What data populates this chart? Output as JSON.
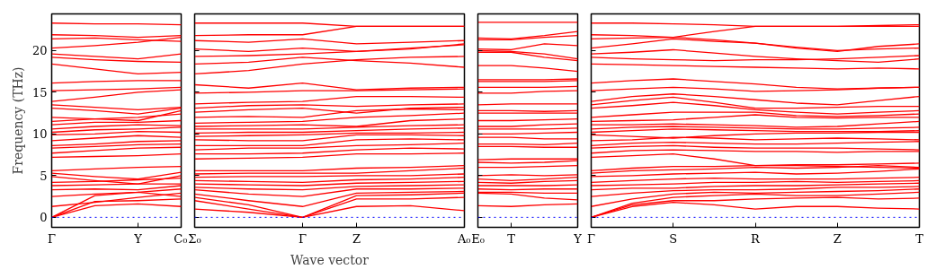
{
  "chart_data": [
    {
      "type": "line",
      "ylabel": "Frequency (THz)",
      "categories": [
        "Γ",
        null,
        "Y",
        "C₀"
      ],
      "ylim": [
        -1.2,
        24.4
      ],
      "yticks": [
        0,
        5,
        10,
        15,
        20
      ],
      "grid": false,
      "line_style": "solid",
      "ref_lines": [
        {
          "axis": "y",
          "value": 0,
          "color": "#0000ff",
          "line_style": "dotted"
        }
      ],
      "series": [
        {
          "color": "#ff0000",
          "values": [
            0,
            1.4,
            1.6,
            1.3
          ]
        },
        {
          "color": "#ff0000",
          "values": [
            0,
            1.9,
            2.0,
            2.2
          ]
        },
        {
          "color": "#ff0000",
          "values": [
            0,
            2.6,
            3.0,
            2.5
          ]
        },
        {
          "color": "#ff0000",
          "values": [
            1.3,
            1.8,
            2.4,
            2.9
          ]
        },
        {
          "color": "#ff0000",
          "values": [
            2.5,
            2.8,
            3.0,
            3.4
          ]
        },
        {
          "color": "#ff0000",
          "values": [
            3.3,
            3.4,
            3.3,
            3.8
          ]
        },
        {
          "color": "#ff0000",
          "values": [
            3.8,
            3.9,
            4.0,
            4.0
          ]
        },
        {
          "color": "#ff0000",
          "values": [
            4.2,
            4.3,
            4.5,
            4.7
          ]
        },
        {
          "color": "#ff0000",
          "values": [
            4.9,
            4.4,
            4.0,
            5.0
          ]
        },
        {
          "color": "#ff0000",
          "values": [
            5.3,
            4.9,
            4.6,
            5.4
          ]
        },
        {
          "color": "#ff0000",
          "values": [
            5.6,
            5.8,
            6.0,
            6.1
          ]
        },
        {
          "color": "#ff0000",
          "values": [
            7.2,
            7.3,
            7.4,
            7.6
          ]
        },
        {
          "color": "#ff0000",
          "values": [
            7.7,
            8.0,
            8.3,
            8.4
          ]
        },
        {
          "color": "#ff0000",
          "values": [
            8.3,
            8.5,
            8.7,
            8.8
          ]
        },
        {
          "color": "#ff0000",
          "values": [
            8.6,
            8.8,
            9.1,
            9.2
          ]
        },
        {
          "color": "#ff0000",
          "values": [
            9.2,
            9.5,
            9.8,
            9.6
          ]
        },
        {
          "color": "#ff0000",
          "values": [
            9.9,
            10.0,
            10.3,
            10.2
          ]
        },
        {
          "color": "#ff0000",
          "values": [
            10.2,
            10.5,
            10.6,
            10.8
          ]
        },
        {
          "color": "#ff0000",
          "values": [
            10.6,
            10.9,
            11.1,
            11.0
          ]
        },
        {
          "color": "#ff0000",
          "values": [
            11.1,
            11.4,
            11.4,
            11.6
          ]
        },
        {
          "color": "#ff0000",
          "values": [
            11.5,
            11.8,
            12.0,
            12.4
          ]
        },
        {
          "color": "#ff0000",
          "values": [
            12.0,
            11.8,
            11.6,
            12.8
          ]
        },
        {
          "color": "#ff0000",
          "values": [
            13.1,
            12.8,
            12.4,
            13.1
          ]
        },
        {
          "color": "#ff0000",
          "values": [
            13.5,
            13.2,
            12.9,
            13.2
          ]
        },
        {
          "color": "#ff0000",
          "values": [
            13.9,
            14.4,
            15.0,
            15.3
          ]
        },
        {
          "color": "#ff0000",
          "values": [
            15.2,
            15.3,
            15.4,
            15.6
          ]
        },
        {
          "color": "#ff0000",
          "values": [
            16.1,
            16.3,
            16.4,
            16.4
          ]
        },
        {
          "color": "#ff0000",
          "values": [
            18.4,
            17.8,
            17.2,
            17.4
          ]
        },
        {
          "color": "#ff0000",
          "values": [
            19.2,
            18.9,
            18.7,
            18.6
          ]
        },
        {
          "color": "#ff0000",
          "values": [
            19.6,
            19.3,
            19.0,
            19.6
          ]
        },
        {
          "color": "#ff0000",
          "values": [
            20.3,
            20.6,
            21.0,
            21.6
          ]
        },
        {
          "color": "#ff0000",
          "values": [
            21.4,
            21.5,
            21.3,
            21.1
          ]
        },
        {
          "color": "#ff0000",
          "values": [
            21.9,
            21.8,
            21.6,
            21.8
          ]
        },
        {
          "color": "#ff0000",
          "values": [
            23.3,
            23.2,
            23.2,
            23.1
          ]
        }
      ]
    },
    {
      "type": "line",
      "xlabel": "Wave vector",
      "categories": [
        "Σ₀",
        null,
        "Γ",
        "Z",
        null,
        "A₀"
      ],
      "ylim": [
        -1.2,
        24.4
      ],
      "yticks": [
        0,
        5,
        10,
        15,
        20
      ],
      "tick_labels": "x",
      "grid": false,
      "line_style": "solid",
      "ref_lines": [
        {
          "axis": "y",
          "value": 0,
          "color": "#0000ff",
          "line_style": "dotted"
        }
      ],
      "series": [
        {
          "color": "#ff0000",
          "values": [
            1.0,
            0.6,
            0,
            1.3,
            1.4,
            0.8
          ]
        },
        {
          "color": "#ff0000",
          "values": [
            2.0,
            1.0,
            0,
            2.2,
            2.2,
            2.4
          ]
        },
        {
          "color": "#ff0000",
          "values": [
            2.4,
            1.5,
            0,
            2.6,
            2.7,
            2.9
          ]
        },
        {
          "color": "#ff0000",
          "values": [
            2.8,
            2.0,
            1.3,
            2.9,
            3.0,
            3.1
          ]
        },
        {
          "color": "#ff0000",
          "values": [
            3.3,
            2.8,
            2.5,
            3.4,
            3.4,
            3.5
          ]
        },
        {
          "color": "#ff0000",
          "values": [
            3.6,
            3.4,
            3.3,
            3.7,
            3.8,
            3.9
          ]
        },
        {
          "color": "#ff0000",
          "values": [
            4.0,
            3.9,
            3.8,
            4.1,
            4.2,
            4.3
          ]
        },
        {
          "color": "#ff0000",
          "values": [
            4.4,
            4.3,
            4.2,
            4.5,
            4.6,
            4.8
          ]
        },
        {
          "color": "#ff0000",
          "values": [
            4.8,
            4.9,
            4.9,
            5.0,
            5.0,
            5.2
          ]
        },
        {
          "color": "#ff0000",
          "values": [
            5.2,
            5.3,
            5.3,
            5.3,
            5.6,
            5.9
          ]
        },
        {
          "color": "#ff0000",
          "values": [
            5.6,
            5.6,
            5.6,
            5.9,
            6.0,
            6.2
          ]
        },
        {
          "color": "#ff0000",
          "values": [
            7.0,
            7.1,
            7.2,
            7.6,
            7.6,
            7.7
          ]
        },
        {
          "color": "#ff0000",
          "values": [
            7.6,
            7.6,
            7.7,
            8.1,
            8.3,
            8.2
          ]
        },
        {
          "color": "#ff0000",
          "values": [
            8.1,
            8.3,
            8.3,
            8.6,
            8.7,
            8.9
          ]
        },
        {
          "color": "#ff0000",
          "values": [
            8.6,
            8.6,
            8.6,
            9.3,
            9.4,
            9.3
          ]
        },
        {
          "color": "#ff0000",
          "values": [
            9.3,
            9.2,
            9.2,
            9.9,
            9.9,
            9.8
          ]
        },
        {
          "color": "#ff0000",
          "values": [
            9.7,
            9.8,
            9.9,
            10.1,
            10.1,
            10.2
          ]
        },
        {
          "color": "#ff0000",
          "values": [
            10.1,
            10.2,
            10.2,
            10.4,
            10.6,
            10.7
          ]
        },
        {
          "color": "#ff0000",
          "values": [
            10.6,
            10.6,
            10.6,
            10.8,
            11.0,
            11.1
          ]
        },
        {
          "color": "#ff0000",
          "values": [
            10.9,
            11.0,
            11.1,
            10.9,
            11.6,
            11.8
          ]
        },
        {
          "color": "#ff0000",
          "values": [
            11.3,
            11.4,
            11.5,
            12.0,
            12.2,
            12.5
          ]
        },
        {
          "color": "#ff0000",
          "values": [
            12.0,
            12.1,
            12.0,
            12.8,
            13.0,
            12.9
          ]
        },
        {
          "color": "#ff0000",
          "values": [
            12.6,
            12.9,
            13.1,
            12.5,
            13.1,
            13.2
          ]
        },
        {
          "color": "#ff0000",
          "values": [
            13.1,
            13.4,
            13.5,
            13.3,
            13.5,
            13.6
          ]
        },
        {
          "color": "#ff0000",
          "values": [
            13.6,
            13.8,
            13.9,
            14.5,
            14.5,
            14.4
          ]
        },
        {
          "color": "#ff0000",
          "values": [
            14.9,
            15.0,
            15.2,
            15.2,
            15.3,
            15.4
          ]
        },
        {
          "color": "#ff0000",
          "values": [
            15.9,
            15.5,
            16.1,
            15.3,
            15.5,
            15.6
          ]
        },
        {
          "color": "#ff0000",
          "values": [
            17.2,
            17.6,
            18.4,
            18.9,
            19.2,
            19.3
          ]
        },
        {
          "color": "#ff0000",
          "values": [
            18.4,
            18.6,
            19.2,
            18.8,
            18.5,
            18.0
          ]
        },
        {
          "color": "#ff0000",
          "values": [
            19.3,
            19.4,
            19.6,
            19.9,
            20.3,
            20.7
          ]
        },
        {
          "color": "#ff0000",
          "values": [
            20.2,
            19.9,
            20.3,
            19.9,
            20.2,
            20.8
          ]
        },
        {
          "color": "#ff0000",
          "values": [
            21.2,
            21.0,
            21.4,
            20.8,
            21.0,
            21.2
          ]
        },
        {
          "color": "#ff0000",
          "values": [
            21.8,
            21.9,
            21.9,
            22.9,
            22.9,
            22.9
          ]
        },
        {
          "color": "#ff0000",
          "values": [
            23.3,
            23.3,
            23.3,
            22.9,
            22.9,
            22.9
          ]
        }
      ]
    },
    {
      "type": "line",
      "categories": [
        "E₀",
        "T",
        null,
        "Y"
      ],
      "ylim": [
        -1.2,
        24.4
      ],
      "yticks": [
        0,
        5,
        10,
        15,
        20
      ],
      "tick_labels": "x",
      "grid": false,
      "line_style": "solid",
      "ref_lines": [
        {
          "axis": "y",
          "value": 0,
          "color": "#0000ff",
          "line_style": "dotted"
        }
      ],
      "series": [
        {
          "color": "#ff0000",
          "values": [
            1.4,
            1.3,
            1.5,
            1.6
          ]
        },
        {
          "color": "#ff0000",
          "values": [
            2.9,
            2.8,
            2.3,
            2.1
          ]
        },
        {
          "color": "#ff0000",
          "values": [
            3.0,
            3.0,
            2.9,
            2.9
          ]
        },
        {
          "color": "#ff0000",
          "values": [
            3.4,
            3.3,
            3.4,
            3.4
          ]
        },
        {
          "color": "#ff0000",
          "values": [
            3.8,
            3.8,
            3.8,
            3.9
          ]
        },
        {
          "color": "#ff0000",
          "values": [
            4.2,
            4.1,
            4.3,
            4.4
          ]
        },
        {
          "color": "#ff0000",
          "values": [
            4.6,
            4.4,
            4.6,
            4.8
          ]
        },
        {
          "color": "#ff0000",
          "values": [
            5.0,
            5.1,
            5.0,
            5.1
          ]
        },
        {
          "color": "#ff0000",
          "values": [
            6.0,
            6.0,
            6.1,
            6.2
          ]
        },
        {
          "color": "#ff0000",
          "values": [
            6.6,
            6.5,
            6.6,
            6.8
          ]
        },
        {
          "color": "#ff0000",
          "values": [
            6.9,
            7.0,
            7.0,
            7.0
          ]
        },
        {
          "color": "#ff0000",
          "values": [
            8.5,
            8.5,
            8.4,
            8.4
          ]
        },
        {
          "color": "#ff0000",
          "values": [
            8.8,
            8.8,
            8.7,
            8.9
          ]
        },
        {
          "color": "#ff0000",
          "values": [
            9.6,
            9.6,
            9.4,
            9.4
          ]
        },
        {
          "color": "#ff0000",
          "values": [
            10.0,
            10.0,
            10.1,
            10.2
          ]
        },
        {
          "color": "#ff0000",
          "values": [
            10.6,
            10.6,
            10.6,
            10.7
          ]
        },
        {
          "color": "#ff0000",
          "values": [
            10.9,
            10.9,
            11.1,
            11.2
          ]
        },
        {
          "color": "#ff0000",
          "values": [
            11.6,
            11.6,
            11.7,
            11.8
          ]
        },
        {
          "color": "#ff0000",
          "values": [
            12.5,
            12.5,
            12.5,
            12.5
          ]
        },
        {
          "color": "#ff0000",
          "values": [
            12.8,
            12.8,
            12.7,
            12.8
          ]
        },
        {
          "color": "#ff0000",
          "values": [
            13.5,
            13.6,
            13.6,
            13.6
          ]
        },
        {
          "color": "#ff0000",
          "values": [
            14.9,
            14.9,
            15.1,
            15.2
          ]
        },
        {
          "color": "#ff0000",
          "values": [
            15.6,
            15.6,
            15.6,
            15.7
          ]
        },
        {
          "color": "#ff0000",
          "values": [
            16.3,
            16.3,
            16.3,
            16.4
          ]
        },
        {
          "color": "#ff0000",
          "values": [
            16.5,
            16.5,
            16.5,
            16.6
          ]
        },
        {
          "color": "#ff0000",
          "values": [
            18.2,
            18.2,
            17.9,
            17.5
          ]
        },
        {
          "color": "#ff0000",
          "values": [
            19.8,
            19.8,
            19.2,
            18.8
          ]
        },
        {
          "color": "#ff0000",
          "values": [
            20.0,
            19.9,
            19.6,
            19.0
          ]
        },
        {
          "color": "#ff0000",
          "values": [
            20.2,
            20.1,
            20.8,
            20.6
          ]
        },
        {
          "color": "#ff0000",
          "values": [
            21.3,
            21.3,
            21.6,
            21.8
          ]
        },
        {
          "color": "#ff0000",
          "values": [
            21.5,
            21.4,
            21.8,
            22.3
          ]
        },
        {
          "color": "#ff0000",
          "values": [
            23.4,
            23.4,
            23.4,
            23.4
          ]
        }
      ]
    },
    {
      "type": "line",
      "categories": [
        "Γ",
        null,
        "S",
        null,
        "R",
        null,
        "Z",
        null,
        "T"
      ],
      "ylim": [
        -1.2,
        24.4
      ],
      "yticks": [
        0,
        5,
        10,
        15,
        20
      ],
      "tick_labels": "x",
      "grid": false,
      "line_style": "solid",
      "ref_lines": [
        {
          "axis": "y",
          "value": 0,
          "color": "#0000ff",
          "line_style": "dotted"
        }
      ],
      "series": [
        {
          "color": "#ff0000",
          "values": [
            0,
            1.3,
            1.8,
            1.5,
            1.0,
            1.3,
            1.3,
            1.1,
            1.0
          ]
        },
        {
          "color": "#ff0000",
          "values": [
            0,
            1.5,
            2.0,
            2.0,
            2.2,
            2.3,
            2.4,
            2.2,
            2.3
          ]
        },
        {
          "color": "#ff0000",
          "values": [
            0,
            1.7,
            2.4,
            2.6,
            2.8,
            2.6,
            2.6,
            2.8,
            3.0
          ]
        },
        {
          "color": "#ff0000",
          "values": [
            1.3,
            2.2,
            2.8,
            3.0,
            2.9,
            3.0,
            3.1,
            3.2,
            3.4
          ]
        },
        {
          "color": "#ff0000",
          "values": [
            2.5,
            2.9,
            3.2,
            3.3,
            3.3,
            3.4,
            3.6,
            3.6,
            3.7
          ]
        },
        {
          "color": "#ff0000",
          "values": [
            3.3,
            3.5,
            3.5,
            3.7,
            3.8,
            3.8,
            3.9,
            4.0,
            4.1
          ]
        },
        {
          "color": "#ff0000",
          "values": [
            3.8,
            3.9,
            4.0,
            4.2,
            4.2,
            4.3,
            4.2,
            4.3,
            4.4
          ]
        },
        {
          "color": "#ff0000",
          "values": [
            4.2,
            4.4,
            4.6,
            4.7,
            4.6,
            4.6,
            4.6,
            4.7,
            4.8
          ]
        },
        {
          "color": "#ff0000",
          "values": [
            4.9,
            5.0,
            5.2,
            5.3,
            5.4,
            5.2,
            5.3,
            5.5,
            5.8
          ]
        },
        {
          "color": "#ff0000",
          "values": [
            5.3,
            5.6,
            5.7,
            5.8,
            6.0,
            5.9,
            6.0,
            6.2,
            6.0
          ]
        },
        {
          "color": "#ff0000",
          "values": [
            5.6,
            5.9,
            6.1,
            6.1,
            6.2,
            6.3,
            6.3,
            6.4,
            6.5
          ]
        },
        {
          "color": "#ff0000",
          "values": [
            7.2,
            7.4,
            7.6,
            7.0,
            6.2,
            6.2,
            6.1,
            6.0,
            5.9
          ]
        },
        {
          "color": "#ff0000",
          "values": [
            7.7,
            8.0,
            8.1,
            8.0,
            7.9,
            7.9,
            7.8,
            7.9,
            7.9
          ]
        },
        {
          "color": "#ff0000",
          "values": [
            8.3,
            8.5,
            8.6,
            8.4,
            8.3,
            8.3,
            8.3,
            8.2,
            8.1
          ]
        },
        {
          "color": "#ff0000",
          "values": [
            8.6,
            8.9,
            9.0,
            8.9,
            8.8,
            8.8,
            8.9,
            9.0,
            9.1
          ]
        },
        {
          "color": "#ff0000",
          "values": [
            9.2,
            9.3,
            9.6,
            9.5,
            9.3,
            9.4,
            9.5,
            9.4,
            9.3
          ]
        },
        {
          "color": "#ff0000",
          "values": [
            9.9,
            9.7,
            9.5,
            9.8,
            10.0,
            10.1,
            10.1,
            10.2,
            10.2
          ]
        },
        {
          "color": "#ff0000",
          "values": [
            10.2,
            10.4,
            10.6,
            10.5,
            10.4,
            10.3,
            10.3,
            10.3,
            10.4
          ]
        },
        {
          "color": "#ff0000",
          "values": [
            10.6,
            10.8,
            10.9,
            10.8,
            10.7,
            10.6,
            10.6,
            10.7,
            10.8
          ]
        },
        {
          "color": "#ff0000",
          "values": [
            11.1,
            11.1,
            11.2,
            11.1,
            11.0,
            10.8,
            10.9,
            11.2,
            11.5
          ]
        },
        {
          "color": "#ff0000",
          "values": [
            11.5,
            11.6,
            11.7,
            12.0,
            12.3,
            12.0,
            11.9,
            12.0,
            12.0
          ]
        },
        {
          "color": "#ff0000",
          "values": [
            12.0,
            12.3,
            12.6,
            12.6,
            12.6,
            12.2,
            12.1,
            12.2,
            12.4
          ]
        },
        {
          "color": "#ff0000",
          "values": [
            13.1,
            13.4,
            13.8,
            13.4,
            12.9,
            12.6,
            12.4,
            12.6,
            12.8
          ]
        },
        {
          "color": "#ff0000",
          "values": [
            13.5,
            14.0,
            14.4,
            13.8,
            13.1,
            13.1,
            13.2,
            13.3,
            13.3
          ]
        },
        {
          "color": "#ff0000",
          "values": [
            13.9,
            14.5,
            14.8,
            14.5,
            14.1,
            13.7,
            13.5,
            14.0,
            14.5
          ]
        },
        {
          "color": "#ff0000",
          "values": [
            15.2,
            15.4,
            15.6,
            15.4,
            15.1,
            15.2,
            15.3,
            15.5,
            15.6
          ]
        },
        {
          "color": "#ff0000",
          "values": [
            16.1,
            16.4,
            16.6,
            16.3,
            16.0,
            15.6,
            15.4,
            15.5,
            15.6
          ]
        },
        {
          "color": "#ff0000",
          "values": [
            18.4,
            18.3,
            18.2,
            18.1,
            18.0,
            17.9,
            17.8,
            17.9,
            17.8
          ]
        },
        {
          "color": "#ff0000",
          "values": [
            19.2,
            19.0,
            18.9,
            18.8,
            18.9,
            18.9,
            19.0,
            19.2,
            19.4
          ]
        },
        {
          "color": "#ff0000",
          "values": [
            19.6,
            19.8,
            20.1,
            19.7,
            19.3,
            19.0,
            18.8,
            18.6,
            19.0
          ]
        },
        {
          "color": "#ff0000",
          "values": [
            20.3,
            20.8,
            21.4,
            21.1,
            20.9,
            20.3,
            19.9,
            20.5,
            20.8
          ]
        },
        {
          "color": "#ff0000",
          "values": [
            21.4,
            21.5,
            21.6,
            21.3,
            20.9,
            20.4,
            20.0,
            20.2,
            20.3
          ]
        },
        {
          "color": "#ff0000",
          "values": [
            21.9,
            21.8,
            21.6,
            22.3,
            22.9,
            22.9,
            22.9,
            22.9,
            22.9
          ]
        },
        {
          "color": "#ff0000",
          "values": [
            23.3,
            23.3,
            23.2,
            23.1,
            22.9,
            22.9,
            22.9,
            23.0,
            23.1
          ]
        }
      ]
    }
  ]
}
